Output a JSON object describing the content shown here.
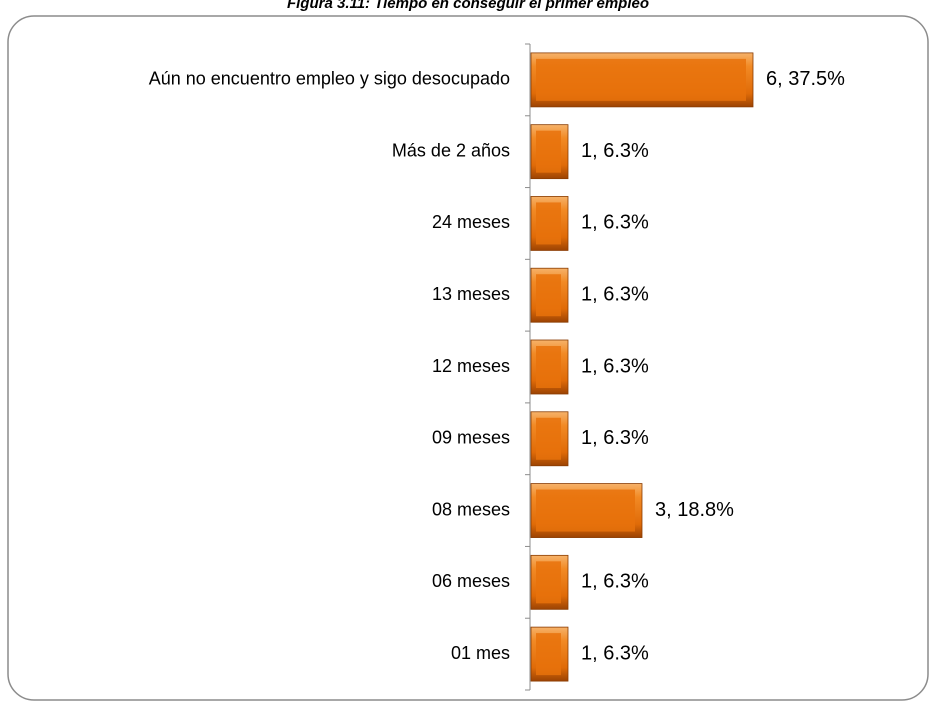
{
  "chart_data": {
    "type": "bar",
    "orientation": "horizontal",
    "title": "Figura 3.11: Tiempo en conseguir el primer empleo",
    "categories": [
      "Aún no encuentro empleo y sigo desocupado",
      "Más de 2 años",
      "24 meses",
      "13 meses",
      "12 meses",
      "09 meses",
      "08 meses",
      "06 meses",
      "01 mes"
    ],
    "values": [
      6,
      1,
      1,
      1,
      1,
      1,
      3,
      1,
      1
    ],
    "value_labels": [
      "6, 37.5%",
      "1, 6.3%",
      "1, 6.3%",
      "1, 6.3%",
      "1, 6.3%",
      "1, 6.3%",
      "3, 18.8%",
      "1, 6.3%",
      "1, 6.3%"
    ],
    "color": "#e8720c"
  }
}
